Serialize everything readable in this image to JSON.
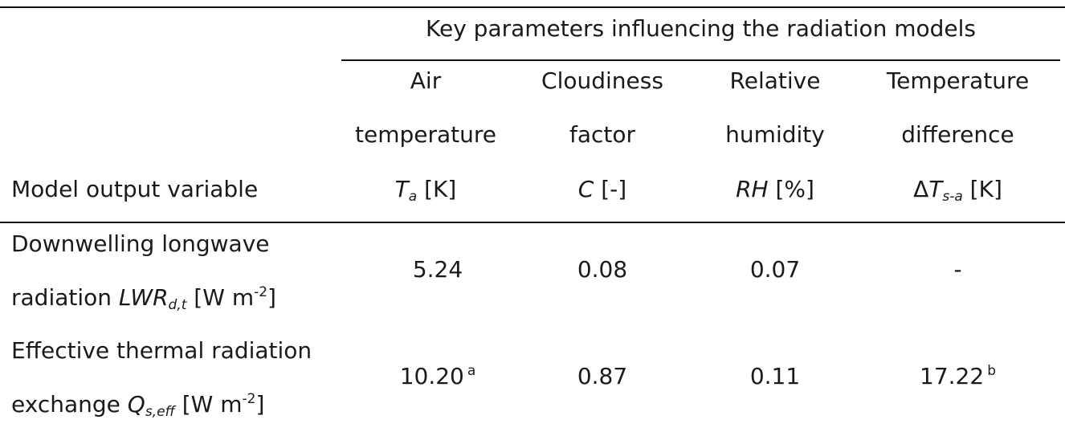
{
  "table": {
    "group_header": "Key parameters influencing the radiation models",
    "stub_header": "Model output variable",
    "columns": [
      {
        "line1": "Air",
        "line2": "temperature",
        "symbol": "T",
        "sub": "a",
        "unit": " [K]"
      },
      {
        "line1": "Cloudiness",
        "line2": "factor",
        "symbol": "C",
        "sub": "",
        "unit": " [-]"
      },
      {
        "line1": "Relative",
        "line2": "humidity",
        "symbol": "RH",
        "sub": "",
        "unit": " [%]"
      },
      {
        "line1": "Temperature",
        "line2": "difference",
        "prefix": "Δ",
        "symbol": "T",
        "sub": "s-a",
        "unit": " [K]"
      }
    ],
    "rows": [
      {
        "label_line1": "Downwelling longwave",
        "label_pre": "radiation ",
        "label_symbol": "LWR",
        "label_sub": "d,t",
        "label_unit_pre": " [W m",
        "label_unit_sup": "-2",
        "label_unit_post": "]",
        "values": [
          {
            "v": "5.24",
            "note": ""
          },
          {
            "v": "0.08",
            "note": ""
          },
          {
            "v": "0.07",
            "note": ""
          },
          {
            "v": "-",
            "note": ""
          }
        ]
      },
      {
        "label_line1": "Effective thermal radiation",
        "label_pre": "exchange ",
        "label_symbol": "Q",
        "label_sub": "s,eff",
        "label_unit_pre": " [W m",
        "label_unit_sup": "-2",
        "label_unit_post": "]",
        "values": [
          {
            "v": "10.20",
            "note": "a"
          },
          {
            "v": "0.87",
            "note": ""
          },
          {
            "v": "0.11",
            "note": ""
          },
          {
            "v": "17.22",
            "note": "b"
          }
        ]
      }
    ]
  }
}
